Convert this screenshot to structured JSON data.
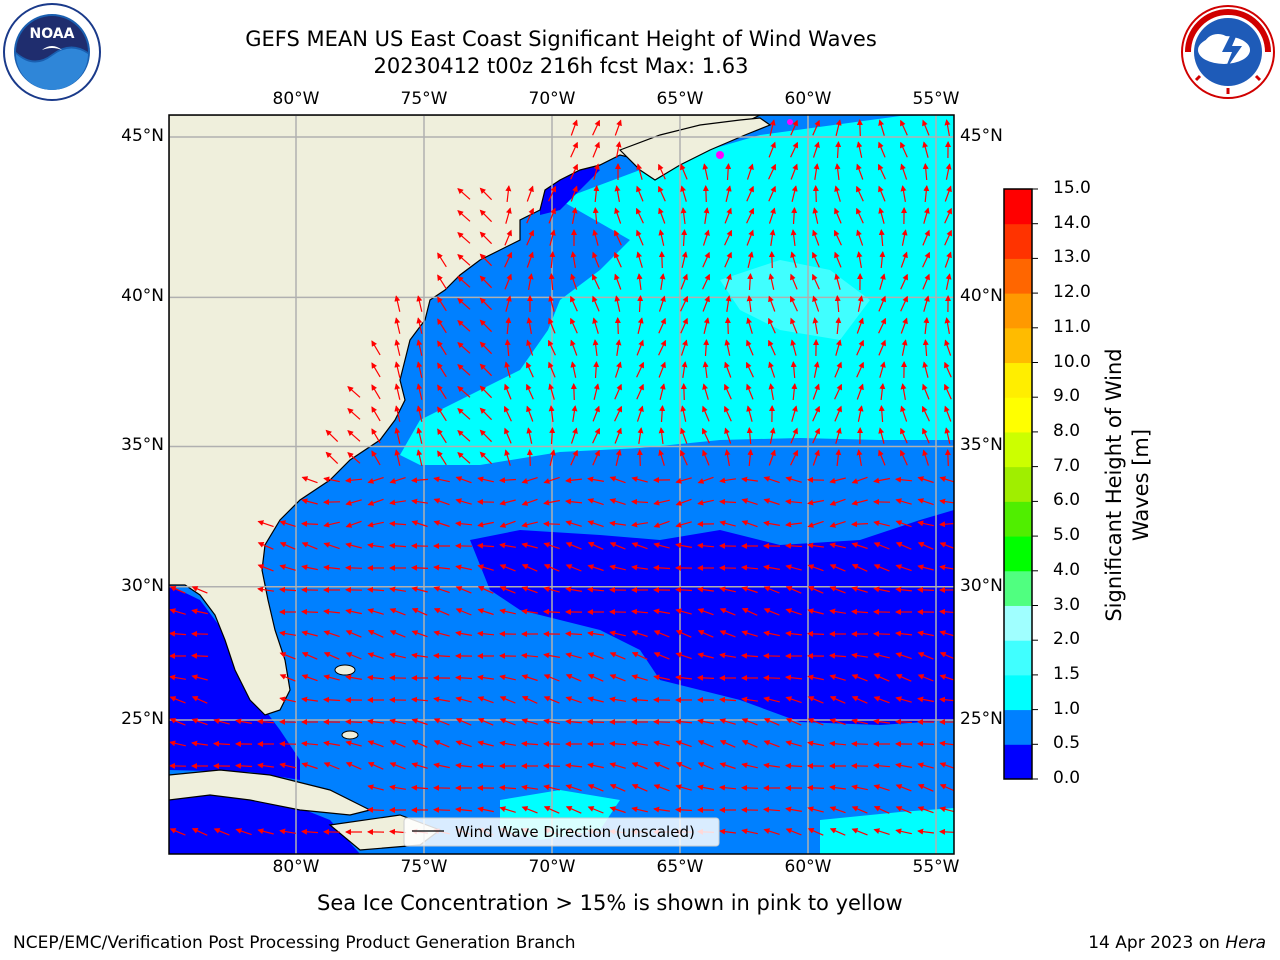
{
  "header": {
    "title_line1": "GEFS MEAN US East Coast Significant Height of Wind Waves",
    "title_line2": "20230412 t00z 216h fcst   Max: 1.63"
  },
  "logos": {
    "noaa": {
      "text": "NOAA",
      "ring_text": "NATIONAL OCEANIC AND ATMOSPHERIC ADMINISTRATION · U.S. DEPARTMENT OF COMMERCE"
    },
    "nws": {
      "ring_text": "NATIONAL WEATHER SERVICE"
    }
  },
  "map": {
    "lon_labels": [
      "80°W",
      "75°W",
      "70°W",
      "65°W",
      "60°W",
      "55°W"
    ],
    "lat_labels": [
      "45°N",
      "40°N",
      "35°N",
      "30°N",
      "25°N"
    ],
    "legend_label": "Wind Wave Direction (unscaled)",
    "max_value": 1.63,
    "colors": {
      "land": "#efefdc",
      "arrow": "#ff0000",
      "grid": "#b0b0b0",
      "ice": "#ff00ff"
    }
  },
  "colorbar": {
    "label_line1": "Significant Height of Wind",
    "label_line2": "Waves [m]",
    "ticks": [
      "0.0",
      "0.5",
      "1.0",
      "1.5",
      "2.0",
      "3.0",
      "4.0",
      "5.0",
      "6.0",
      "7.0",
      "8.0",
      "9.0",
      "10.0",
      "11.0",
      "12.0",
      "13.0",
      "14.0",
      "15.0"
    ],
    "colors": [
      "#0000ff",
      "#0080ff",
      "#00ffff",
      "#40ffff",
      "#a0ffff",
      "#50ff80",
      "#00ff00",
      "#50ee00",
      "#a0ee00",
      "#ccff00",
      "#ffff00",
      "#ffee00",
      "#ffbb00",
      "#ff9900",
      "#ff6600",
      "#ff3300",
      "#ff0000"
    ]
  },
  "note": "Sea Ice Concentration > 15% is shown in pink to yellow",
  "footer": {
    "left": "NCEP/EMC/Verification Post Processing Product Generation Branch",
    "date": "14 Apr 2023 on ",
    "host": "Hera"
  }
}
